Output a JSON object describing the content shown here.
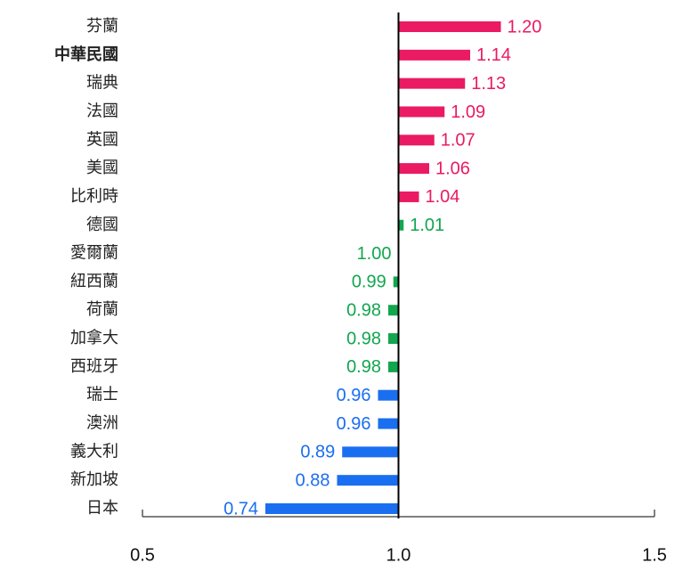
{
  "chart_data": {
    "type": "hbar",
    "categories": [
      "芬蘭",
      "中華民國",
      "瑞典",
      "法國",
      "英國",
      "美國",
      "比利時",
      "德國",
      "愛爾蘭",
      "紐西蘭",
      "荷蘭",
      "加拿大",
      "西班牙",
      "瑞士",
      "澳洲",
      "義大利",
      "新加坡",
      "日本"
    ],
    "values": [
      1.2,
      1.14,
      1.13,
      1.09,
      1.07,
      1.06,
      1.04,
      1.01,
      1.0,
      0.99,
      0.98,
      0.98,
      0.98,
      0.96,
      0.96,
      0.89,
      0.88,
      0.74
    ],
    "value_labels": [
      "1.20",
      "1.14",
      "1.13",
      "1.09",
      "1.07",
      "1.06",
      "1.04",
      "1.01",
      "1.00",
      "0.99",
      "0.98",
      "0.98",
      "0.98",
      "0.96",
      "0.96",
      "0.89",
      "0.88",
      "0.74"
    ],
    "colors": [
      "#ea1a63",
      "#ea1a63",
      "#ea1a63",
      "#ea1a63",
      "#ea1a63",
      "#ea1a63",
      "#ea1a63",
      "#12a64f",
      "#12a64f",
      "#12a64f",
      "#12a64f",
      "#12a64f",
      "#12a64f",
      "#1a6ef0",
      "#1a6ef0",
      "#1a6ef0",
      "#1a6ef0",
      "#1a6ef0"
    ],
    "baseline": {
      "value": 1,
      "label": "1.0"
    },
    "highlight_index": 1,
    "xlim": [
      0.5,
      1.5
    ],
    "xticks": [
      0.5,
      {
        "value": 1,
        "label": "1.0"
      },
      1.5
    ]
  }
}
